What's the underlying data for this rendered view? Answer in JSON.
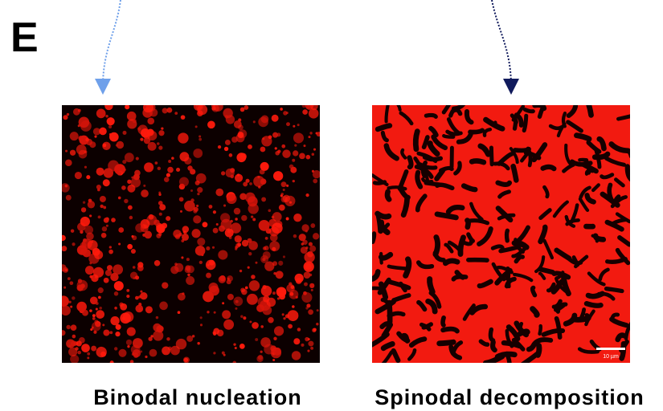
{
  "panel_label": "E",
  "panels": [
    {
      "label": "Binodal nucleation"
    },
    {
      "label": "Spinodal decomposition",
      "scale_bar": "10 µm"
    }
  ]
}
